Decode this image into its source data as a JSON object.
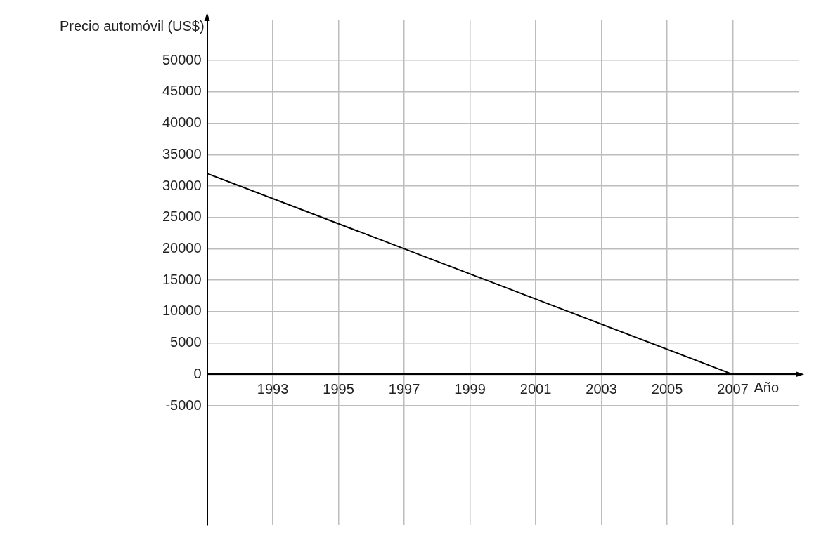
{
  "chart_data": {
    "type": "line",
    "xlabel": "Año",
    "ylabel": "Precio automóvil (US$)",
    "x": [
      1991,
      2007
    ],
    "series": [
      {
        "color": "#000000",
        "values": [
          32000,
          0
        ]
      }
    ],
    "xlim": [
      1991,
      2009
    ],
    "xticks": [
      1993,
      1995,
      1997,
      1999,
      2001,
      2003,
      2005,
      2007
    ],
    "ylim": [
      -24000,
      56500
    ],
    "yticks": [
      -5000,
      0,
      5000,
      10000,
      15000,
      20000,
      25000,
      30000,
      35000,
      40000,
      45000,
      50000
    ],
    "grid": true,
    "legend": false,
    "marker": "none",
    "line_style": "solid"
  }
}
